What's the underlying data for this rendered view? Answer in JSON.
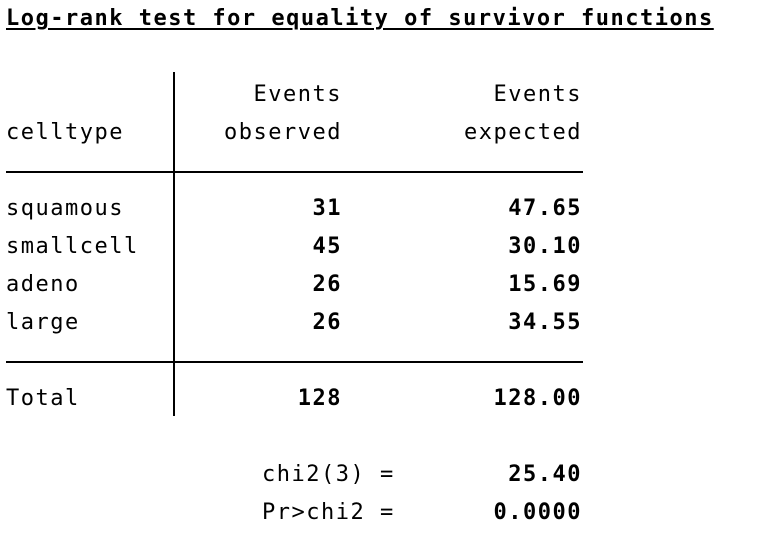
{
  "title": "Log-rank test for equality of survivor functions",
  "table": {
    "header": {
      "group_label": "celltype",
      "observed_line1": "Events",
      "observed_line2": "observed",
      "expected_line1": "Events",
      "expected_line2": "expected"
    },
    "rows": [
      {
        "label": "squamous",
        "observed": "31",
        "expected": "47.65"
      },
      {
        "label": "smallcell",
        "observed": "45",
        "expected": "30.10"
      },
      {
        "label": "adeno",
        "observed": "26",
        "expected": "15.69"
      },
      {
        "label": "large",
        "observed": "26",
        "expected": "34.55"
      }
    ],
    "total": {
      "label": "Total",
      "observed": "128",
      "expected": "128.00"
    }
  },
  "stats": {
    "chi2_label": "chi2(3) =",
    "chi2_value": "25.40",
    "p_label": "Pr>chi2 =",
    "p_value": "0.0000"
  }
}
